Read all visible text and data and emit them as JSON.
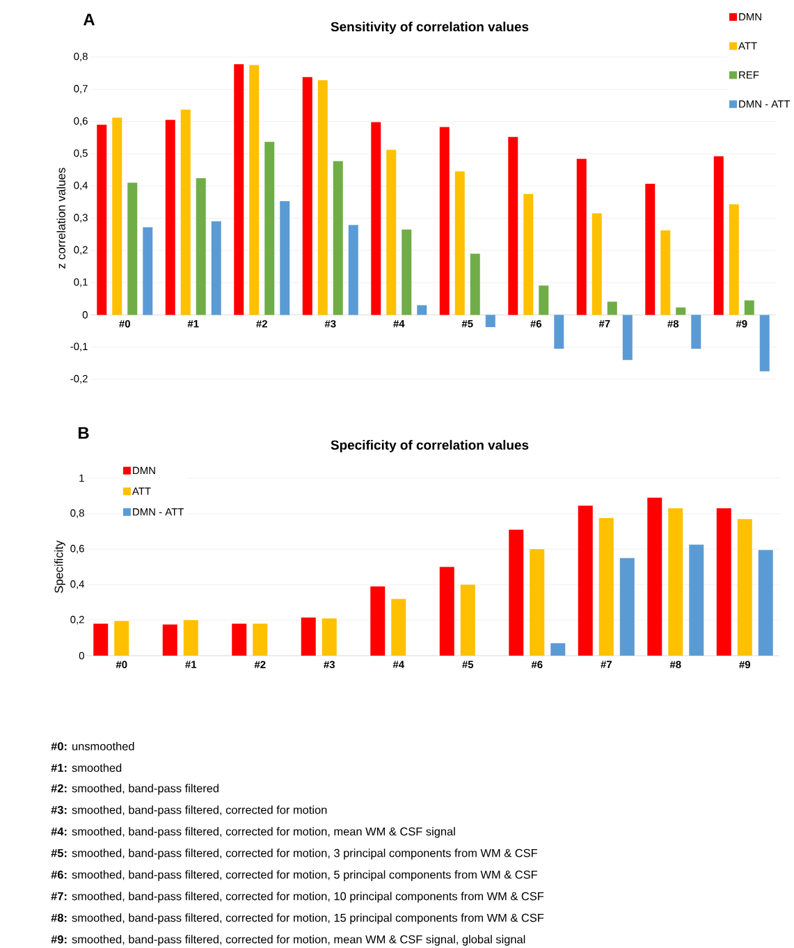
{
  "chart_data": [
    {
      "type": "bar",
      "title": "Sensitivity of correlation values",
      "ylabel": "z correlation values",
      "categories": [
        "#0",
        "#1",
        "#2",
        "#3",
        "#4",
        "#5",
        "#6",
        "#7",
        "#8",
        "#9"
      ],
      "series": [
        {
          "name": "DMN",
          "color": "#ff0000",
          "values": [
            0.59,
            0.605,
            0.778,
            0.738,
            0.598,
            0.583,
            0.552,
            0.484,
            0.407,
            0.492
          ]
        },
        {
          "name": "ATT",
          "color": "#ffc000",
          "values": [
            0.612,
            0.637,
            0.775,
            0.728,
            0.512,
            0.445,
            0.375,
            0.315,
            0.262,
            0.343
          ]
        },
        {
          "name": "REF",
          "color": "#70ad47",
          "values": [
            0.41,
            0.424,
            0.537,
            0.477,
            0.265,
            0.19,
            0.091,
            0.041,
            0.023,
            0.045
          ]
        },
        {
          "name": "DMN - ATT",
          "color": "#5b9bd5",
          "values": [
            0.272,
            0.29,
            0.353,
            0.279,
            0.03,
            -0.038,
            -0.105,
            -0.14,
            -0.105,
            -0.175
          ]
        }
      ],
      "ylim": [
        -0.2,
        0.8
      ],
      "yticks": [
        {
          "value": -0.2,
          "label": "-0,2"
        },
        {
          "value": -0.1,
          "label": "-0,1"
        },
        0,
        {
          "value": 0.1,
          "label": "0,1"
        },
        {
          "value": 0.2,
          "label": "0,2"
        },
        {
          "value": 0.3,
          "label": "0,3"
        },
        {
          "value": 0.4,
          "label": "0,4"
        },
        {
          "value": 0.5,
          "label": "0,5"
        },
        {
          "value": 0.6,
          "label": "0,6"
        },
        {
          "value": 0.7,
          "label": "0,7"
        },
        {
          "value": 0.8,
          "label": "0,8"
        }
      ],
      "grid": "y",
      "legend": "top right",
      "annotations": [
        "A"
      ]
    },
    {
      "type": "bar",
      "title": "Specificity of correlation values",
      "ylabel": "Specificity",
      "categories": [
        "#0",
        "#1",
        "#2",
        "#3",
        "#4",
        "#5",
        "#6",
        "#7",
        "#8",
        "#9"
      ],
      "series": [
        {
          "name": "DMN",
          "color": "#ff0000",
          "values": [
            0.18,
            0.175,
            0.18,
            0.215,
            0.39,
            0.5,
            0.71,
            0.845,
            0.89,
            0.83
          ]
        },
        {
          "name": "ATT",
          "color": "#ffc000",
          "values": [
            0.195,
            0.2,
            0.18,
            0.21,
            0.32,
            0.4,
            0.6,
            0.775,
            0.83,
            0.77
          ]
        },
        {
          "name": "DMN - ATT",
          "color": "#5b9bd5",
          "values": [
            null,
            null,
            null,
            null,
            null,
            null,
            0.07,
            0.55,
            0.625,
            0.595
          ]
        }
      ],
      "ylim": [
        0,
        1
      ],
      "yticks": [
        0,
        {
          "value": 0.2,
          "label": "0,2"
        },
        {
          "value": 0.4,
          "label": "0,4"
        },
        {
          "value": 0.6,
          "label": "0,6"
        },
        {
          "value": 0.8,
          "label": "0,8"
        },
        1
      ],
      "grid": "y",
      "legend": "top left",
      "annotations": [
        "B",
        "**#0:** unsmoothed",
        "**#1:** smoothed",
        "**#2:** smoothed, band-pass filtered",
        "**#3:** smoothed, band-pass filtered, corrected for motion",
        "**#4:** smoothed, band-pass filtered, corrected for motion, mean WM & CSF signal",
        "**#5:** smoothed, band-pass filtered, corrected for motion, 3 principal components from WM & CSF",
        "**#6:** smoothed, band-pass filtered, corrected for motion, 5 principal components from WM & CSF",
        "**#7:** smoothed, band-pass filtered, corrected for motion, 10 principal components from WM & CSF",
        "**#8:** smoothed, band-pass filtered, corrected for motion, 15 principal components from WM & CSF",
        "**#9:** smoothed, band-pass filtered, corrected for motion, mean WM & CSF signal, global signal"
      ]
    }
  ]
}
